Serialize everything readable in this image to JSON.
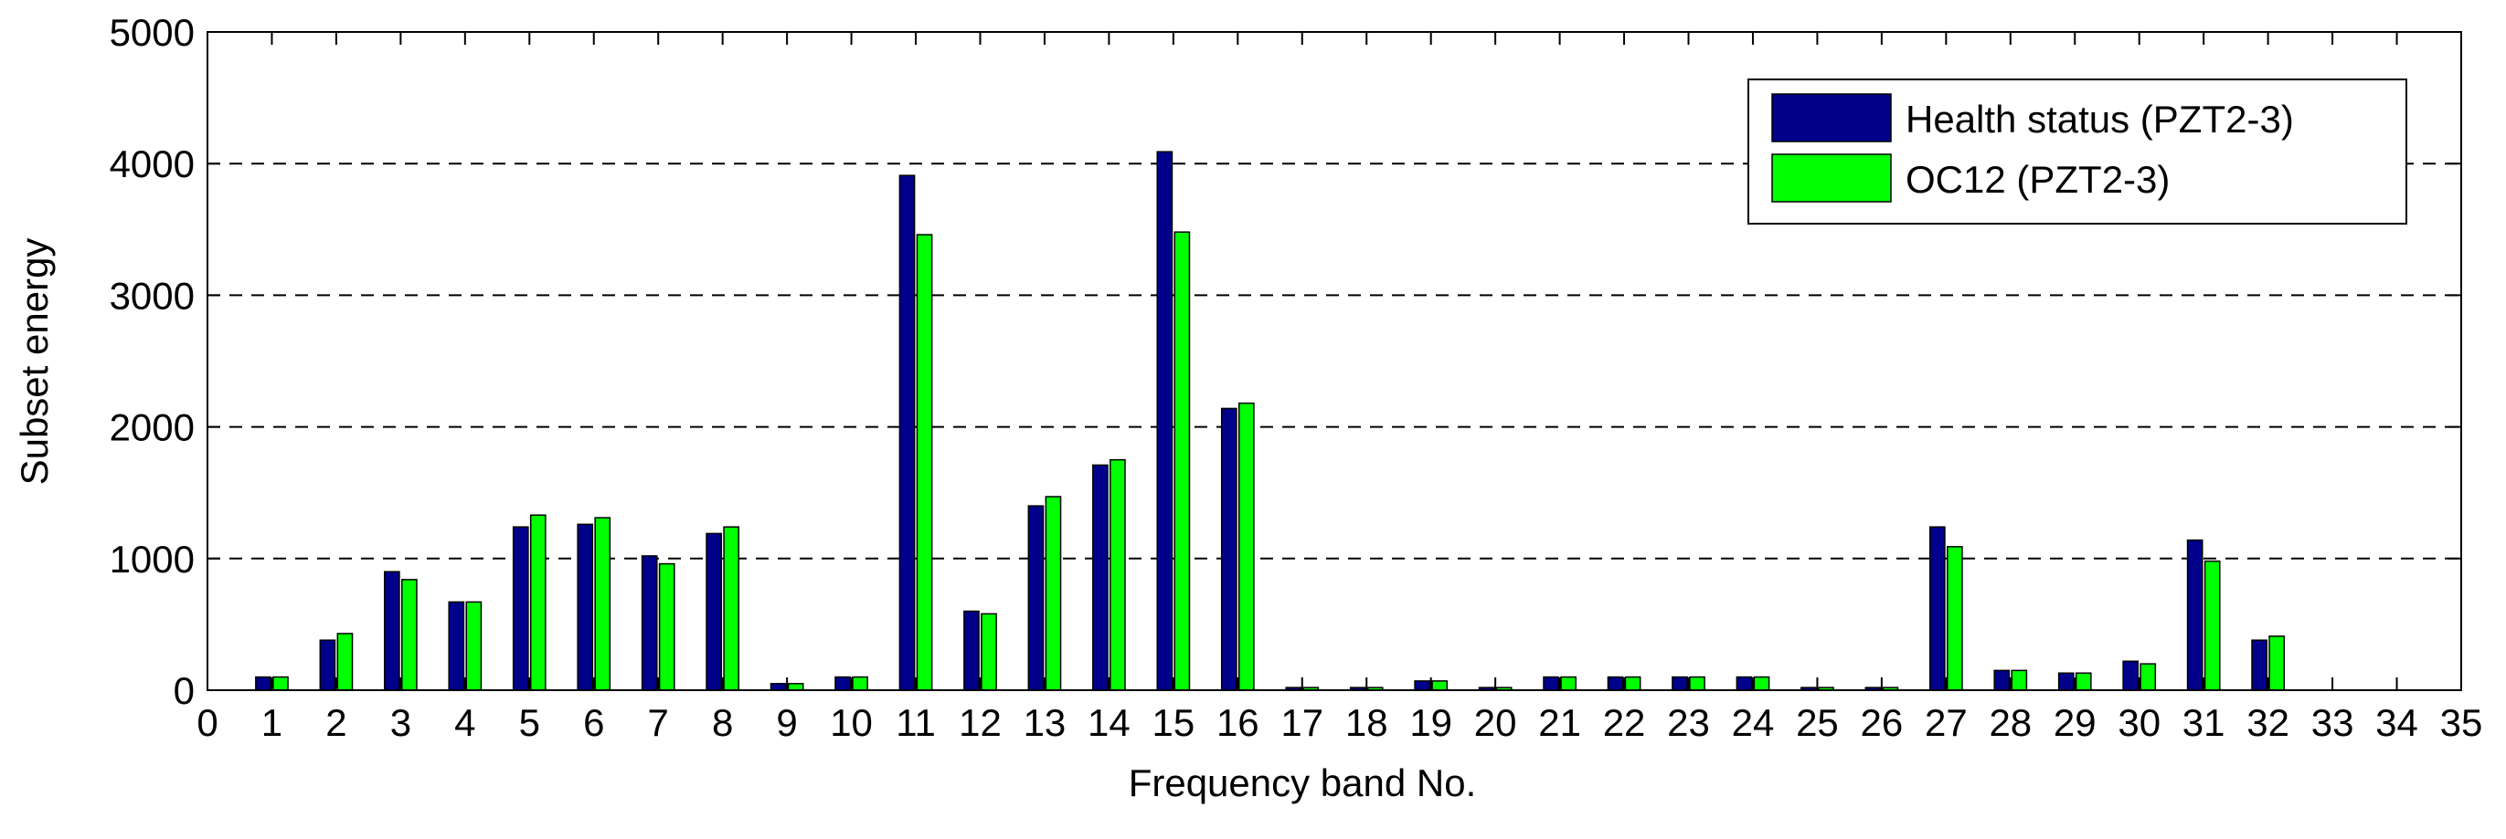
{
  "chart_data": {
    "type": "bar",
    "xlabel": "Frequency band No.",
    "ylabel": "Subset energy",
    "x": [
      1,
      2,
      3,
      4,
      5,
      6,
      7,
      8,
      9,
      10,
      11,
      12,
      13,
      14,
      15,
      16,
      17,
      18,
      19,
      20,
      21,
      22,
      23,
      24,
      25,
      26,
      27,
      28,
      29,
      30,
      31,
      32
    ],
    "series": [
      {
        "name": "Health status (PZT2-3)",
        "color": "#00008b",
        "values": [
          100,
          380,
          900,
          670,
          1240,
          1260,
          1020,
          1190,
          50,
          100,
          3910,
          600,
          1400,
          1710,
          4090,
          2140,
          20,
          20,
          70,
          20,
          100,
          100,
          100,
          100,
          20,
          20,
          1240,
          150,
          130,
          220,
          1140,
          380
        ]
      },
      {
        "name": "OC12 (PZT2-3)",
        "color": "#00ff00",
        "values": [
          100,
          430,
          840,
          670,
          1330,
          1310,
          960,
          1240,
          50,
          100,
          3460,
          580,
          1470,
          1750,
          3480,
          2180,
          20,
          20,
          70,
          20,
          100,
          100,
          100,
          100,
          20,
          20,
          1090,
          150,
          130,
          200,
          980,
          410
        ]
      }
    ],
    "xlim": [
      0,
      35
    ],
    "xticks": [
      0,
      1,
      2,
      3,
      4,
      5,
      6,
      7,
      8,
      9,
      10,
      11,
      12,
      13,
      14,
      15,
      16,
      17,
      18,
      19,
      20,
      21,
      22,
      23,
      24,
      25,
      26,
      27,
      28,
      29,
      30,
      31,
      32,
      33,
      34,
      35
    ],
    "ylim": [
      0,
      5000
    ],
    "yticks": [
      0,
      1000,
      2000,
      3000,
      4000,
      5000
    ],
    "grid": true,
    "legend": "upper right"
  }
}
